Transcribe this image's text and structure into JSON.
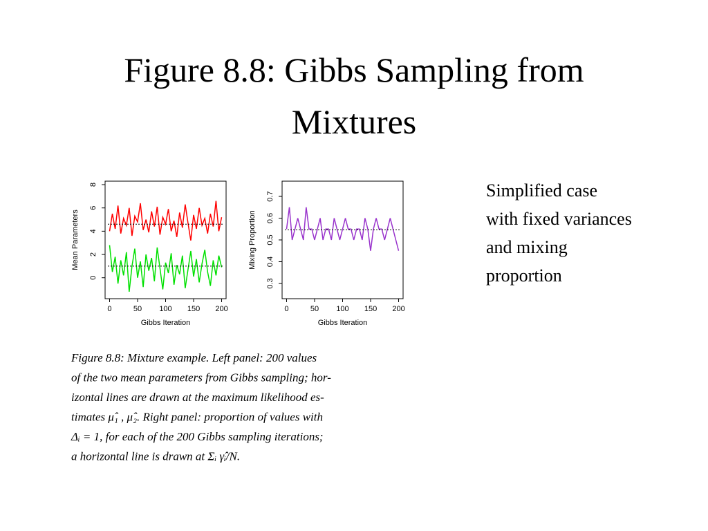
{
  "slide": {
    "title_lines": [
      "Figure 8.8: Gibbs Sampling from",
      "Mixtures"
    ],
    "note_lines": [
      "Simplified case",
      "with fixed variances",
      "and mixing",
      "proportion"
    ],
    "caption_lines": [
      "Figure 8.8:  Mixture example.  Left panel:  200  values",
      "of the two mean parameters from Gibbs sampling; hor-",
      "izontal lines are drawn at the maximum likelihood es-",
      "timates μ̂₁ , μ̂₂.  Right panel: proportion of values with",
      "Δᵢ = 1, for each of the 200 Gibbs sampling iterations;",
      "a horizontal line is drawn at Σᵢ γ̂ᵢ/N."
    ]
  },
  "chart_data": [
    {
      "type": "line",
      "x_label": "Gibbs Iteration",
      "y_label": "Mean Parameters",
      "x": [
        0,
        5,
        10,
        15,
        20,
        25,
        30,
        35,
        40,
        45,
        50,
        55,
        60,
        65,
        70,
        75,
        80,
        85,
        90,
        95,
        100,
        105,
        110,
        115,
        120,
        125,
        130,
        135,
        140,
        145,
        150,
        155,
        160,
        165,
        170,
        175,
        180,
        185,
        190,
        195,
        200
      ],
      "series": [
        {
          "color": "#ff0000",
          "values": [
            4.0,
            5.5,
            4.2,
            6.2,
            3.8,
            5.1,
            4.5,
            6.0,
            3.6,
            5.3,
            4.8,
            6.4,
            4.1,
            5.0,
            3.9,
            5.7,
            4.4,
            6.1,
            3.7,
            5.2,
            4.6,
            5.9,
            4.0,
            4.9,
            3.5,
            5.6,
            4.3,
            6.3,
            4.7,
            3.2,
            5.4,
            4.2,
            6.0,
            4.5,
            5.1,
            3.8,
            5.5,
            4.4,
            6.6,
            4.0,
            5.2
          ]
        },
        {
          "color": "#00e000",
          "values": [
            2.8,
            0.5,
            1.8,
            -0.5,
            1.5,
            0.2,
            2.2,
            -1.2,
            1.0,
            2.5,
            0.0,
            1.4,
            -0.8,
            2.0,
            0.6,
            1.7,
            -0.3,
            2.6,
            0.8,
            -1.0,
            1.3,
            0.4,
            2.1,
            -0.6,
            1.1,
            0.3,
            1.9,
            -0.9,
            0.7,
            2.3,
            0.1,
            1.6,
            -0.4,
            1.2,
            2.4,
            0.5,
            -0.7,
            1.5,
            0.2,
            1.9,
            0.9
          ]
        }
      ],
      "reference_lines": [
        4.6,
        1.0
      ],
      "xlim": [
        -8,
        208
      ],
      "ylim": [
        -1.8,
        8.3
      ],
      "xticks": [
        0,
        50,
        100,
        150,
        200
      ],
      "yticks": [
        0,
        2,
        4,
        6,
        8
      ]
    },
    {
      "type": "line",
      "x_label": "Gibbs Iteration",
      "y_label": "Mixing Proportion",
      "x": [
        0,
        5,
        10,
        15,
        20,
        25,
        30,
        35,
        40,
        45,
        50,
        55,
        60,
        65,
        70,
        75,
        80,
        85,
        90,
        95,
        100,
        105,
        110,
        115,
        120,
        125,
        130,
        135,
        140,
        145,
        150,
        155,
        160,
        165,
        170,
        175,
        180,
        185,
        190,
        195,
        200
      ],
      "series": [
        {
          "color": "#9933cc",
          "values": [
            0.55,
            0.65,
            0.5,
            0.55,
            0.6,
            0.55,
            0.5,
            0.65,
            0.55,
            0.55,
            0.5,
            0.55,
            0.6,
            0.5,
            0.55,
            0.55,
            0.5,
            0.6,
            0.55,
            0.5,
            0.55,
            0.6,
            0.55,
            0.55,
            0.5,
            0.55,
            0.55,
            0.5,
            0.6,
            0.55,
            0.45,
            0.55,
            0.6,
            0.55,
            0.55,
            0.5,
            0.55,
            0.6,
            0.55,
            0.5,
            0.45
          ]
        }
      ],
      "reference_lines": [
        0.546
      ],
      "xlim": [
        -8,
        208
      ],
      "ylim": [
        0.23,
        0.77
      ],
      "xticks": [
        0,
        50,
        100,
        150,
        200
      ],
      "yticks": [
        0.3,
        0.4,
        0.5,
        0.6,
        0.7
      ]
    }
  ]
}
